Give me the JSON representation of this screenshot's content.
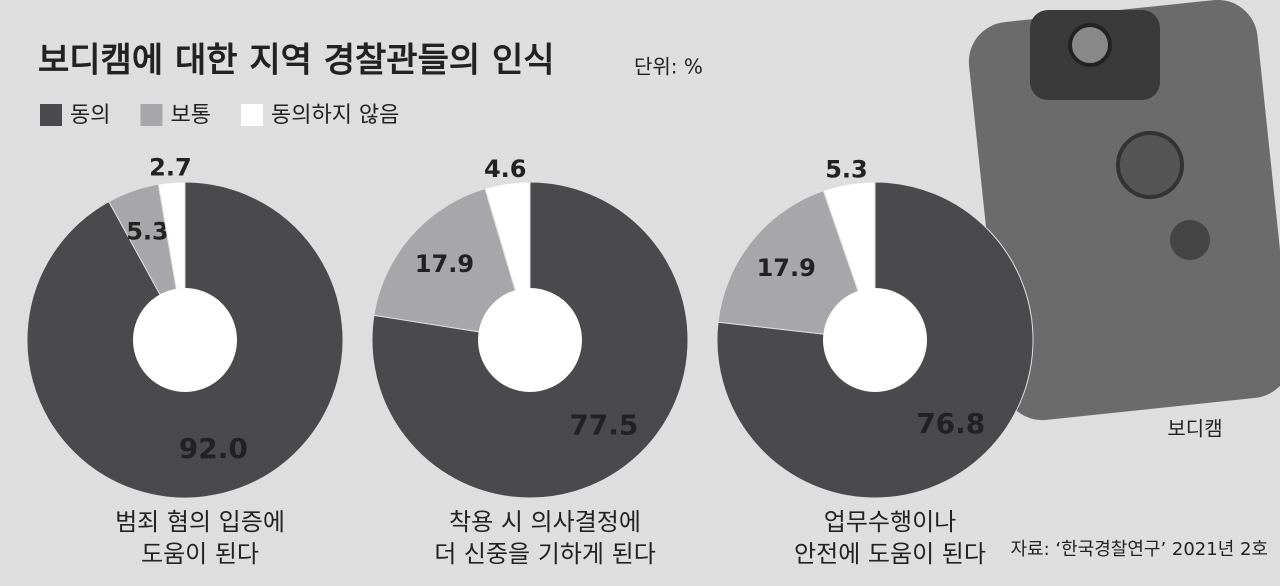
{
  "header": {
    "title": "보디캠에 대한 지역 경찰관들의 인식",
    "unit": "단위: %"
  },
  "legend": {
    "labels": [
      "동의",
      "보통",
      "동의하지 않음"
    ],
    "colors": [
      "#4a4a4c",
      "#a7a7a9",
      "#ffffff"
    ]
  },
  "chart_data": [
    {
      "type": "pie",
      "title": [
        "범죄 혐의 입증에",
        "도움이 된다"
      ],
      "values": [
        92.0,
        5.3,
        2.7
      ],
      "value_labels": [
        "92.0",
        "5.3",
        "2.7"
      ]
    },
    {
      "type": "pie",
      "title": [
        "착용 시 의사결정에",
        "더 신중을 기하게 된다"
      ],
      "values": [
        77.5,
        17.9,
        4.6
      ]
    },
    {
      "type": "pie",
      "title": [
        "업무수행이나",
        "안전에 도움이 된다"
      ],
      "values": [
        76.8,
        17.9,
        5.3
      ]
    }
  ],
  "photo_caption": "보디캠",
  "source": "자료: ‘한국경찰연구’ 2021년 2호"
}
